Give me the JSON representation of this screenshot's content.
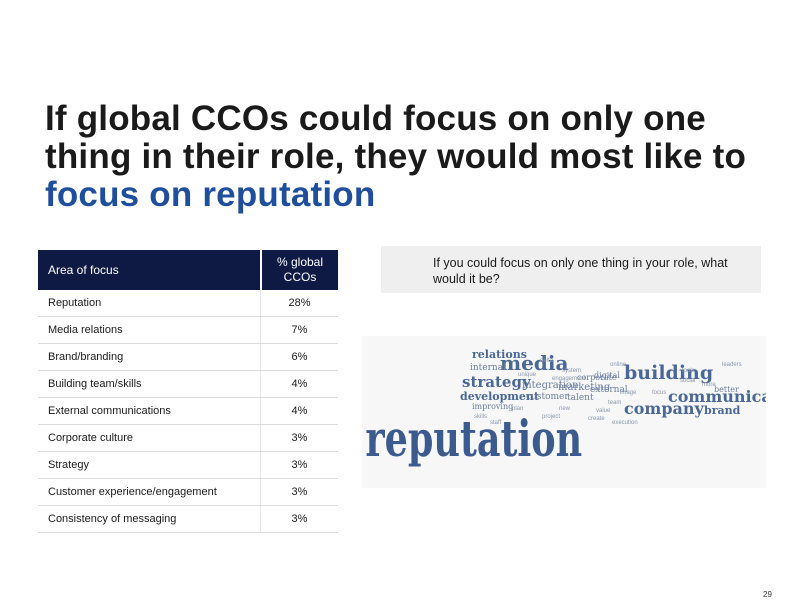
{
  "title": {
    "part1": "If global CCOs could focus on only one thing in their role, they would most like to ",
    "highlight": "focus on reputation"
  },
  "table": {
    "header_area": "Area of focus",
    "header_pct": "% global CCOs",
    "rows": [
      {
        "area": "Reputation",
        "pct": "28%"
      },
      {
        "area": "Media relations",
        "pct": "7%"
      },
      {
        "area": "Brand/branding",
        "pct": "6%"
      },
      {
        "area": "Building team/skills",
        "pct": "4%"
      },
      {
        "area": "External communications",
        "pct": "4%"
      },
      {
        "area": "Corporate culture",
        "pct": "3%"
      },
      {
        "area": "Strategy",
        "pct": "3%"
      },
      {
        "area": "Customer experience/engagement",
        "pct": "3%"
      },
      {
        "area": "Consistency of messaging",
        "pct": "3%"
      }
    ]
  },
  "question": "If you could focus on only one thing in your role, what would it be?",
  "word_cloud": {
    "main": "reputation",
    "words_large": [
      "media",
      "building",
      "strategy",
      "communication",
      "company",
      "development",
      "relations",
      "brand"
    ],
    "words_medium": [
      "integration",
      "marketing",
      "customer",
      "external",
      "internal",
      "talent",
      "corporate",
      "improving",
      "digital",
      "better"
    ],
    "words_small": [
      "delta",
      "engagement",
      "new",
      "team",
      "value",
      "system",
      "skills",
      "plan",
      "online",
      "social",
      "leaders",
      "image",
      "focus",
      "create",
      "project",
      "staff",
      "execution",
      "more",
      "tools",
      "unique"
    ],
    "color_main": "#3b5a8e",
    "color_words": "#4a6896"
  },
  "page_number": "29",
  "colors": {
    "title_highlight": "#1f4e9c",
    "table_header_bg": "#0f1a44"
  }
}
